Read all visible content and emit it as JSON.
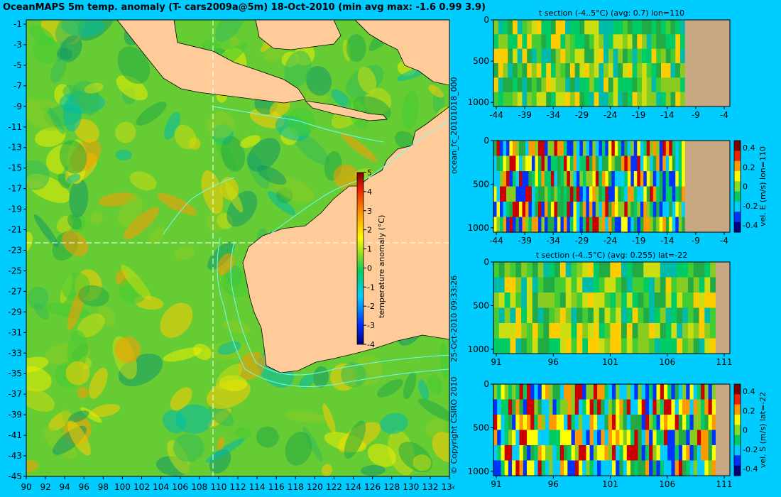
{
  "title": "OceanMAPS 5m temp. anomaly (T- cars2009a@5m) 18-Oct-2010 (min avg max: -1.6 0.99 3.9)",
  "map": {
    "lat_ticks": [
      "-1",
      "-3",
      "-5",
      "-7",
      "-9",
      "-11",
      "-13",
      "-15",
      "-17",
      "-19",
      "-21",
      "-23",
      "-25",
      "-27",
      "-29",
      "-31",
      "-33",
      "-35",
      "-37",
      "-39",
      "-41",
      "-43",
      "-45"
    ],
    "lon_ticks": [
      "90",
      "92",
      "94",
      "96",
      "98",
      "100",
      "102",
      "104",
      "106",
      "108",
      "110",
      "112",
      "114",
      "116",
      "118",
      "120",
      "122",
      "124",
      "126",
      "128",
      "130",
      "132",
      "134"
    ],
    "colorbar_ticks": [
      "5",
      "4",
      "3",
      "2",
      "1",
      "0",
      "-1",
      "-2",
      "-3",
      "-4"
    ],
    "colorbar_label": "temperature anomaly (°C)",
    "section_lat": -22,
    "section_lon": 110
  },
  "side_text": {
    "run_id": "ocean_fc_20101018_000",
    "timestamp": "25-Oct-2010 09:33:26",
    "copyright": "© Copyright CSIRO 2010"
  },
  "panels": [
    {
      "title": "t section (-4..5°C) (avg: 0.7) lon=110",
      "x_ticks": [
        "-44",
        "-39",
        "-34",
        "-29",
        "-24",
        "-19",
        "-14",
        "-9",
        "-4"
      ],
      "y_ticks": [
        "0",
        "500",
        "1000"
      ],
      "land_from": 0.81
    },
    {
      "title": "",
      "x_ticks": [
        "-44",
        "-39",
        "-34",
        "-29",
        "-24",
        "-19",
        "-14",
        "-9",
        "-4"
      ],
      "y_ticks": [
        "0",
        "500",
        "1000"
      ],
      "land_from": 0.81,
      "cbar_ticks": [
        "0.4",
        "0.2",
        "0",
        "-0.2",
        "-0.4"
      ],
      "cbar_label": "vel. E (m/s) lon=110"
    },
    {
      "title": "t section (-4..5°C) (avg: 0.255) lat=-22",
      "x_ticks": [
        "91",
        "96",
        "101",
        "106",
        "111"
      ],
      "y_ticks": [
        "0",
        "500",
        "1000"
      ],
      "land_from": 0.94
    },
    {
      "title": "",
      "x_ticks": [
        "91",
        "96",
        "101",
        "106",
        "111"
      ],
      "y_ticks": [
        "0",
        "500",
        "1000"
      ],
      "land_from": 0.94,
      "cbar_ticks": [
        "0.4",
        "0.2",
        "0",
        "-0.2",
        "-0.4"
      ],
      "cbar_label": "vel. S (m/s) lat=-22"
    }
  ],
  "colors": {
    "background": "#00ccff",
    "land": "#ffcc99",
    "section_land": "#c8a882",
    "contour": "#66ffff"
  }
}
